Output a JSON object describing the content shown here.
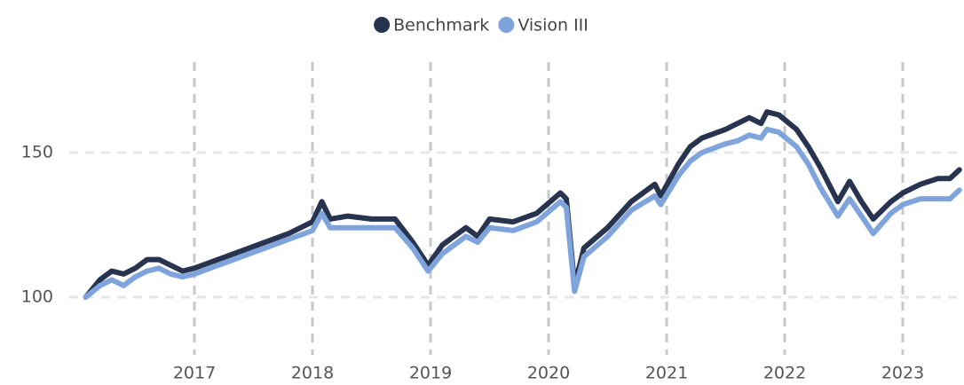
{
  "chart_data": {
    "type": "line",
    "x": [
      2016.08,
      2016.2,
      2016.3,
      2016.4,
      2016.5,
      2016.6,
      2016.7,
      2016.8,
      2016.9,
      2017.0,
      2017.2,
      2017.4,
      2017.6,
      2017.8,
      2018.0,
      2018.08,
      2018.15,
      2018.3,
      2018.5,
      2018.7,
      2018.85,
      2018.98,
      2019.1,
      2019.3,
      2019.4,
      2019.5,
      2019.7,
      2019.9,
      2020.1,
      2020.15,
      2020.22,
      2020.3,
      2020.5,
      2020.7,
      2020.9,
      2020.95,
      2021.1,
      2021.2,
      2021.3,
      2021.5,
      2021.6,
      2021.7,
      2021.8,
      2021.85,
      2021.95,
      2022.1,
      2022.2,
      2022.3,
      2022.45,
      2022.55,
      2022.65,
      2022.75,
      2022.9,
      2023.0,
      2023.15,
      2023.3,
      2023.4,
      2023.48
    ],
    "series": [
      {
        "name": "Benchmark",
        "color": "#283350",
        "values": [
          100,
          106,
          109,
          108,
          110,
          113,
          113,
          111,
          109,
          110,
          113,
          116,
          119,
          122,
          126,
          133,
          127,
          128,
          127,
          127,
          119,
          111,
          118,
          124,
          121,
          127,
          126,
          129,
          136,
          134,
          104,
          117,
          124,
          133,
          139,
          135,
          146,
          152,
          155,
          158,
          160,
          162,
          160,
          164,
          163,
          158,
          152,
          145,
          133,
          140,
          133,
          127,
          133,
          136,
          139,
          141,
          141,
          144
        ]
      },
      {
        "name": "Vision III",
        "color": "#7fa3db",
        "values": [
          100,
          104,
          106,
          104,
          107,
          109,
          110,
          108,
          107,
          108,
          111,
          114,
          117,
          120,
          123,
          129,
          124,
          124,
          124,
          124,
          117,
          109,
          115,
          121,
          119,
          124,
          123,
          126,
          133,
          131,
          102,
          114,
          121,
          130,
          135,
          132,
          142,
          147,
          150,
          153,
          154,
          156,
          155,
          158,
          157,
          152,
          146,
          138,
          128,
          134,
          128,
          122,
          129,
          132,
          134,
          134,
          134,
          137
        ]
      }
    ],
    "xlim": [
      2016,
      2023.5
    ],
    "xticks": [
      2017,
      2018,
      2019,
      2020,
      2021,
      2022,
      2023
    ],
    "ylim": [
      80,
      180
    ],
    "yticks": [
      100,
      150
    ],
    "grid": true,
    "legend": "top"
  }
}
